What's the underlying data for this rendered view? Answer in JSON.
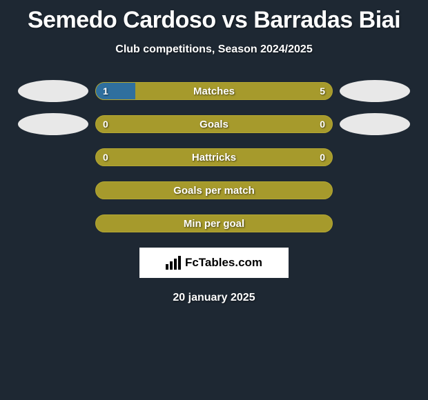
{
  "title": "Semedo Cardoso vs Barradas Biai",
  "subtitle": "Club competitions, Season 2024/2025",
  "date": "20 january 2025",
  "brand": "FcTables.com",
  "colors": {
    "bg": "#1e2833",
    "olive": "#a69a2c",
    "olive_border": "#b5a832",
    "blue": "#2f6f9e",
    "ellipse": "#e8e8e8"
  },
  "rows": [
    {
      "label": "Matches",
      "left_value": "1",
      "right_value": "5",
      "left_pct": 16.7,
      "right_pct": 83.3,
      "left_color": "#2f6f9e",
      "right_color": "#a69a2c",
      "show_left_photo": true,
      "show_right_photo": true
    },
    {
      "label": "Goals",
      "left_value": "0",
      "right_value": "0",
      "left_pct": 0,
      "right_pct": 0,
      "left_color": "#2f6f9e",
      "right_color": "#a69a2c",
      "show_left_photo": true,
      "show_right_photo": true
    },
    {
      "label": "Hattricks",
      "left_value": "0",
      "right_value": "0",
      "left_pct": 0,
      "right_pct": 0,
      "left_color": "#2f6f9e",
      "right_color": "#a69a2c",
      "show_left_photo": false,
      "show_right_photo": false
    },
    {
      "label": "Goals per match",
      "left_value": "",
      "right_value": "",
      "left_pct": 0,
      "right_pct": 0,
      "left_color": "#2f6f9e",
      "right_color": "#a69a2c",
      "show_left_photo": false,
      "show_right_photo": false
    },
    {
      "label": "Min per goal",
      "left_value": "",
      "right_value": "",
      "left_pct": 0,
      "right_pct": 0,
      "left_color": "#2f6f9e",
      "right_color": "#a69a2c",
      "show_left_photo": false,
      "show_right_photo": false
    }
  ]
}
